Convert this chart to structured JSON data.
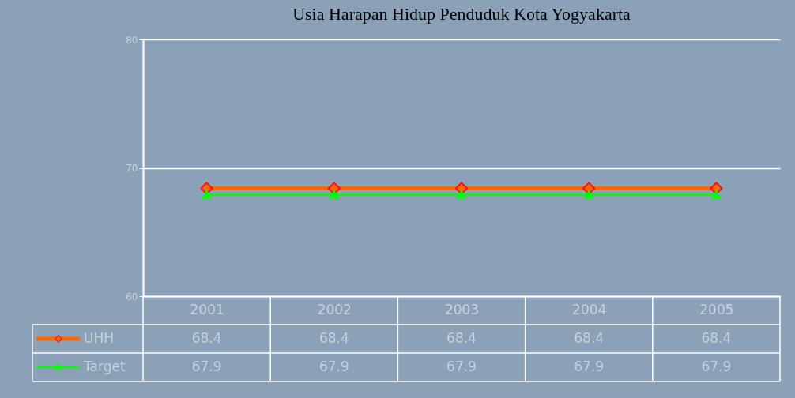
{
  "chart_data": {
    "type": "line",
    "title": "Usia Harapan Hidup Penduduk Kota Yogyakarta",
    "categories": [
      "2001",
      "2002",
      "2003",
      "2004",
      "2005"
    ],
    "series": [
      {
        "name": "UHH",
        "color": "#ff6600",
        "marker": "diamond",
        "values": [
          68.4,
          68.4,
          68.4,
          68.4,
          68.4
        ]
      },
      {
        "name": "Target",
        "color": "#00ff00",
        "marker": "triangle",
        "values": [
          67.9,
          67.9,
          67.9,
          67.9,
          67.9
        ]
      }
    ],
    "ylim": [
      60,
      80
    ],
    "yticks": [
      60,
      70,
      80
    ],
    "grid": "y",
    "legend": "bottom",
    "data_labels": true
  }
}
